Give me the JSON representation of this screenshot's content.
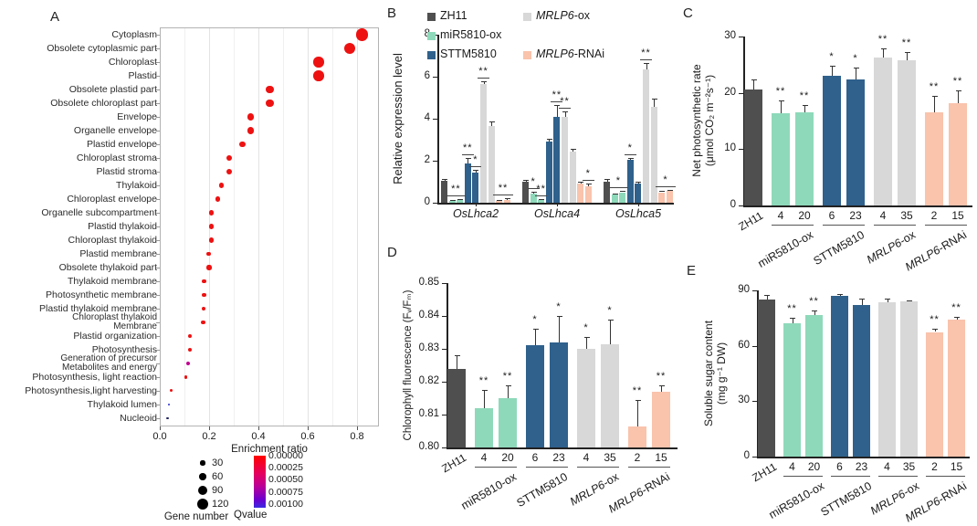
{
  "panels": {
    "a": "A",
    "b": "B",
    "c": "C",
    "d": "D",
    "e": "E"
  },
  "chart_data": [
    {
      "panel": "A",
      "type": "scatter",
      "xlabel": "Enrichment ratio",
      "xlim": [
        0,
        0.88
      ],
      "xticks": [
        "0.0",
        "0.2",
        "0.4",
        "0.6",
        "0.8"
      ],
      "points": [
        {
          "label": [
            "Cytoplasm"
          ],
          "x": 0.82,
          "genes": 130,
          "qcolor": "#ee1111"
        },
        {
          "label": [
            "Obsolete cytoplasmic part"
          ],
          "x": 0.77,
          "genes": 118,
          "qcolor": "#ee1111"
        },
        {
          "label": [
            "Chloroplast"
          ],
          "x": 0.645,
          "genes": 108,
          "qcolor": "#ee1111"
        },
        {
          "label": [
            "Plastid"
          ],
          "x": 0.645,
          "genes": 108,
          "qcolor": "#ee1111"
        },
        {
          "label": [
            "Obsolete plastid part"
          ],
          "x": 0.445,
          "genes": 75,
          "qcolor": "#ee1111"
        },
        {
          "label": [
            "Obsolete chloroplast part"
          ],
          "x": 0.445,
          "genes": 75,
          "qcolor": "#ee1111"
        },
        {
          "label": [
            "Envelope"
          ],
          "x": 0.37,
          "genes": 55,
          "qcolor": "#ee1111"
        },
        {
          "label": [
            "Organelle envelope"
          ],
          "x": 0.37,
          "genes": 55,
          "qcolor": "#ee1111"
        },
        {
          "label": [
            "Plastid envelope"
          ],
          "x": 0.335,
          "genes": 48,
          "qcolor": "#ee1111"
        },
        {
          "label": [
            "Chloroplast stroma"
          ],
          "x": 0.28,
          "genes": 42,
          "qcolor": "#ee1111"
        },
        {
          "label": [
            "Plastid stroma"
          ],
          "x": 0.28,
          "genes": 42,
          "qcolor": "#ee1111"
        },
        {
          "label": [
            "Thylakoid"
          ],
          "x": 0.25,
          "genes": 40,
          "qcolor": "#ee1111"
        },
        {
          "label": [
            "Chloroplast envelope"
          ],
          "x": 0.235,
          "genes": 35,
          "qcolor": "#ee1111"
        },
        {
          "label": [
            "Organelle subcompartment"
          ],
          "x": 0.21,
          "genes": 30,
          "qcolor": "#ee1111"
        },
        {
          "label": [
            "Plastid thylakoid"
          ],
          "x": 0.21,
          "genes": 32,
          "qcolor": "#ee1111"
        },
        {
          "label": [
            "Chloroplast thylakoid"
          ],
          "x": 0.21,
          "genes": 32,
          "qcolor": "#ee1111"
        },
        {
          "label": [
            "Plastid membrane"
          ],
          "x": 0.197,
          "genes": 27,
          "qcolor": "#ee1111"
        },
        {
          "label": [
            "Obsolete thylakoid part"
          ],
          "x": 0.2,
          "genes": 30,
          "qcolor": "#ee1111"
        },
        {
          "label": [
            "Thylakoid membrane"
          ],
          "x": 0.178,
          "genes": 28,
          "qcolor": "#ee1111"
        },
        {
          "label": [
            "Photosynthetic membrane"
          ],
          "x": 0.178,
          "genes": 28,
          "qcolor": "#ee1111"
        },
        {
          "label": [
            "Plastid thylakoid membrane"
          ],
          "x": 0.178,
          "genes": 27,
          "qcolor": "#ee1111"
        },
        {
          "label": [
            "Chloroplast thylakoid",
            "Membrane"
          ],
          "x": 0.176,
          "genes": 26,
          "qcolor": "#ee1111"
        },
        {
          "label": [
            "Plastid organization"
          ],
          "x": 0.123,
          "genes": 16,
          "qcolor": "#ee1111"
        },
        {
          "label": [
            "Photosynthesis"
          ],
          "x": 0.123,
          "genes": 16,
          "qcolor": "#ee1111"
        },
        {
          "label": [
            "Generation of precursor",
            "Metabolites and energy"
          ],
          "x": 0.114,
          "genes": 16,
          "qcolor": "#c0008f"
        },
        {
          "label": [
            "Photosynthesis, light reaction"
          ],
          "x": 0.105,
          "genes": 13,
          "qcolor": "#ee1111"
        },
        {
          "label": [
            "Photosynthesis,light harvesting"
          ],
          "x": 0.046,
          "genes": 5,
          "qcolor": "#ee1111"
        },
        {
          "label": [
            "Thylakoid lumen"
          ],
          "x": 0.037,
          "genes": 4,
          "qcolor": "#2a2ad0"
        },
        {
          "label": [
            "Nucleoid"
          ],
          "x": 0.033,
          "genes": 3,
          "qcolor": "#20205a"
        }
      ],
      "size_legend": {
        "title": "Gene number",
        "entries": [
          30,
          60,
          90,
          120
        ]
      },
      "color_legend": {
        "title": "Qvalue",
        "ticks": [
          "0.00000",
          "0.00025",
          "0.00050",
          "0.00075",
          "0.00100"
        ]
      }
    },
    {
      "panel": "B",
      "type": "bar",
      "ylabel_lines": [
        "Relative expression level"
      ],
      "ylim": [
        0,
        8
      ],
      "yticks": [
        "0",
        "2",
        "4",
        "6",
        "8"
      ],
      "legend": [
        {
          "italic": "",
          "text": "ZH11",
          "color": "#4f4f4f"
        },
        {
          "italic": "",
          "text": "miR5810-ox",
          "color": "#8ed9ba"
        },
        {
          "italic": "",
          "text": "STTM5810",
          "color": "#2f618c"
        },
        {
          "italic": "MRLP6",
          "text": "-ox",
          "color": "#d8d8d8"
        },
        {
          "italic": "MRLP6",
          "text": "-RNAi",
          "color": "#f9c3ac"
        }
      ],
      "series_colors": [
        "#4f4f4f",
        "#8ed9ba",
        "#8ed9ba",
        "#2f618c",
        "#2f618c",
        "#d8d8d8",
        "#d8d8d8",
        "#f9c3ac",
        "#f9c3ac"
      ],
      "groups": [
        {
          "label": {
            "italic": "OsLhca2",
            "text": ""
          },
          "values": [
            1.05,
            0.08,
            0.13,
            1.85,
            1.45,
            5.65,
            3.65,
            0.1,
            0.15
          ],
          "errors": [
            0.06,
            0.03,
            0.04,
            0.3,
            0.12,
            0.15,
            0.2,
            0.05,
            0.05
          ],
          "marks": [
            {
              "i": 1,
              "span": 2,
              "t": "**"
            },
            {
              "i": 3,
              "t": "**"
            },
            {
              "i": 4,
              "t": "*"
            },
            {
              "i": 5,
              "t": "**"
            },
            {
              "i": 7,
              "span": 2,
              "t": "**"
            }
          ]
        },
        {
          "label": {
            "italic": "OsLhca4",
            "text": ""
          },
          "values": [
            1.0,
            0.45,
            0.15,
            2.9,
            4.1,
            4.1,
            2.45,
            0.9,
            0.8
          ],
          "errors": [
            0.07,
            0.06,
            0.04,
            0.15,
            0.55,
            0.25,
            0.12,
            0.08,
            0.1
          ],
          "marks": [
            {
              "i": 1,
              "t": "*"
            },
            {
              "i": 2,
              "t": "**"
            },
            {
              "i": 4,
              "t": "**"
            },
            {
              "i": 5,
              "t": "**"
            },
            {
              "i": 8,
              "t": "*"
            }
          ]
        },
        {
          "label": {
            "italic": "OsLhca5",
            "text": ""
          },
          "values": [
            1.0,
            0.38,
            0.5,
            2.05,
            0.9,
            6.35,
            4.55,
            0.5,
            0.55
          ],
          "errors": [
            0.12,
            0.05,
            0.08,
            0.1,
            0.08,
            0.3,
            0.4,
            0.08,
            0.06
          ],
          "marks": [
            {
              "i": 1,
              "span": 2,
              "t": "*"
            },
            {
              "i": 3,
              "t": "*"
            },
            {
              "i": 5,
              "t": "**"
            },
            {
              "i": 7,
              "span": 2,
              "t": "*"
            }
          ]
        }
      ]
    },
    {
      "panel": "C",
      "type": "bar",
      "ylabel_lines": [
        "Net photosynthetic rate",
        "(μmol CO₂ m⁻²s⁻¹)"
      ],
      "ylim": [
        0,
        30
      ],
      "yticks": [
        "0",
        "10",
        "20",
        "30"
      ],
      "categories": [
        "ZH11",
        "4",
        "20",
        "6",
        "23",
        "4",
        "35",
        "2",
        "15"
      ],
      "group_labels": [
        {
          "italic": "",
          "text": "miR5810-ox"
        },
        {
          "italic": "",
          "text": "STTM5810"
        },
        {
          "italic": "MRLP6",
          "text": "-ox"
        },
        {
          "italic": "MRLP6",
          "text": "-RNAi"
        }
      ],
      "series_colors": [
        "#4f4f4f",
        "#8ed9ba",
        "#8ed9ba",
        "#2f618c",
        "#2f618c",
        "#d8d8d8",
        "#d8d8d8",
        "#f9c3ac",
        "#f9c3ac"
      ],
      "values": [
        20.6,
        16.4,
        16.5,
        23.0,
        22.4,
        26.3,
        25.8,
        16.5,
        18.1
      ],
      "errors": [
        1.7,
        2.3,
        1.4,
        1.8,
        2.1,
        1.6,
        1.5,
        3.0,
        2.3
      ],
      "sigs": [
        "",
        "**",
        "**",
        "*",
        "*",
        "**",
        "**",
        "**",
        "**"
      ]
    },
    {
      "panel": "D",
      "type": "bar",
      "ylabel_lines": [
        "Chlorophyll fluorescence  (Fᵥ/Fₘ)"
      ],
      "ylim": [
        0.8,
        0.85
      ],
      "yticks": [
        "0.80",
        "0.81",
        "0.82",
        "0.83",
        "0.84",
        "0.85"
      ],
      "categories": [
        "ZH11",
        "4",
        "20",
        "6",
        "23",
        "4",
        "35",
        "2",
        "15"
      ],
      "group_labels": [
        {
          "italic": "",
          "text": "miR5810-ox"
        },
        {
          "italic": "",
          "text": "STTM5810"
        },
        {
          "italic": "MRLP6",
          "text": "-ox"
        },
        {
          "italic": "MRLP6",
          "text": "-RNAi"
        }
      ],
      "series_colors": [
        "#4f4f4f",
        "#8ed9ba",
        "#8ed9ba",
        "#2f618c",
        "#2f618c",
        "#d8d8d8",
        "#d8d8d8",
        "#f9c3ac",
        "#f9c3ac"
      ],
      "values": [
        0.824,
        0.812,
        0.815,
        0.831,
        0.832,
        0.83,
        0.8315,
        0.8065,
        0.817
      ],
      "errors": [
        0.004,
        0.0055,
        0.004,
        0.005,
        0.008,
        0.0035,
        0.0075,
        0.008,
        0.002
      ],
      "sigs": [
        "",
        "**",
        "**",
        "*",
        "*",
        "*",
        "*",
        "**",
        "**"
      ]
    },
    {
      "panel": "E",
      "type": "bar",
      "ylabel_lines": [
        "Soluble sugar content",
        "(mg g⁻¹ DW)"
      ],
      "ylim": [
        0,
        90
      ],
      "yticks": [
        "0",
        "30",
        "60",
        "90"
      ],
      "categories": [
        "ZH11",
        "4",
        "20",
        "6",
        "23",
        "4",
        "35",
        "2",
        "15"
      ],
      "group_labels": [
        {
          "italic": "",
          "text": "miR5810-ox"
        },
        {
          "italic": "",
          "text": "STTM5810"
        },
        {
          "italic": "MRLP6",
          "text": "-ox"
        },
        {
          "italic": "MRLP6",
          "text": "-RNAi"
        }
      ],
      "series_colors": [
        "#4f4f4f",
        "#8ed9ba",
        "#8ed9ba",
        "#2f618c",
        "#2f618c",
        "#d8d8d8",
        "#d8d8d8",
        "#f9c3ac",
        "#f9c3ac"
      ],
      "values": [
        85,
        72,
        76.5,
        87,
        82,
        83.5,
        84,
        67.5,
        74
      ],
      "errors": [
        2.5,
        3,
        2.5,
        1,
        3.5,
        2,
        0.5,
        1.5,
        1.5
      ],
      "sigs": [
        "",
        "**",
        "**",
        "",
        "",
        "",
        "",
        "**",
        "**"
      ]
    }
  ]
}
